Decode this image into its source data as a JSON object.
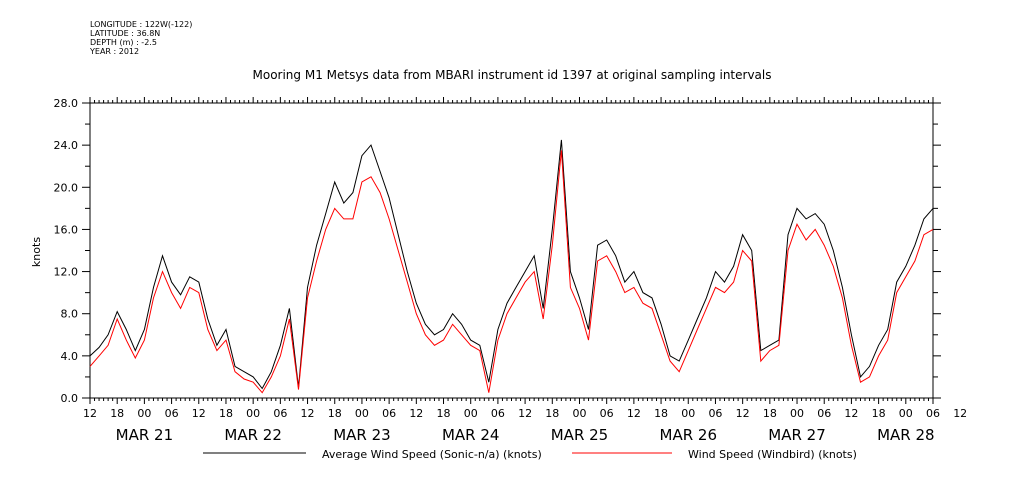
{
  "header": {
    "longitude": "LONGITUDE : 122W(-122)",
    "latitude": "LATITUDE : 36.8N",
    "depth": "DEPTH (m) : -2.5",
    "year": "YEAR : 2012"
  },
  "chart_data": {
    "type": "line",
    "title": "Mooring M1 Metsys data from MBARI instrument id 1397 at original sampling intervals",
    "ylabel": "knots",
    "ylim": [
      0,
      28
    ],
    "y_ticks": [
      "0.0",
      "4.0",
      "8.0",
      "12.0",
      "16.0",
      "20.0",
      "24.0",
      "28.0"
    ],
    "x_range_hours": [
      0,
      186
    ],
    "x_hour_ticks": [
      "12",
      "18",
      "00",
      "06",
      "12",
      "18",
      "00",
      "06",
      "12",
      "18",
      "00",
      "06",
      "12",
      "18",
      "00",
      "06",
      "12",
      "18",
      "00",
      "06",
      "12",
      "18",
      "00",
      "06",
      "12",
      "18",
      "00",
      "06",
      "12",
      "18",
      "00",
      "06",
      "12"
    ],
    "x_day_labels": [
      "MAR 21",
      "MAR 22",
      "MAR 23",
      "MAR 24",
      "MAR 25",
      "MAR 26",
      "MAR 27",
      "MAR 28"
    ],
    "x_start": "2012-03-21 12:00",
    "x_unit": "hours since start",
    "series": [
      {
        "name": "Average Wind Speed (Sonic-n/a) (knots)",
        "color": "#000000",
        "x": [
          0,
          2,
          4,
          6,
          8,
          10,
          12,
          14,
          16,
          18,
          20,
          22,
          24,
          26,
          28,
          30,
          32,
          34,
          36,
          38,
          40,
          42,
          44,
          46,
          48,
          50,
          52,
          54,
          56,
          58,
          60,
          62,
          64,
          66,
          68,
          70,
          72,
          74,
          76,
          78,
          80,
          82,
          84,
          86,
          88,
          90,
          92,
          94,
          96,
          98,
          100,
          102,
          104,
          106,
          108,
          110,
          112,
          114,
          116,
          118,
          120,
          122,
          124,
          126,
          128,
          130,
          132,
          134,
          136,
          138,
          140,
          142,
          144,
          146,
          148,
          150,
          152,
          154,
          156,
          158,
          160,
          162,
          164,
          166,
          168,
          170,
          172,
          174,
          176,
          178,
          180,
          182,
          184,
          186
        ],
        "values": [
          4.0,
          4.8,
          6.0,
          8.2,
          6.5,
          4.5,
          6.5,
          10.5,
          13.5,
          11.0,
          9.8,
          11.5,
          11.0,
          7.5,
          5.0,
          6.5,
          3.0,
          2.5,
          2.0,
          0.9,
          2.5,
          5.0,
          8.5,
          1.0,
          10.5,
          14.5,
          17.5,
          20.5,
          18.5,
          19.5,
          23.0,
          24.0,
          21.5,
          19.0,
          15.5,
          12.0,
          9.0,
          7.0,
          6.0,
          6.5,
          8.0,
          7.0,
          5.5,
          5.0,
          1.5,
          6.5,
          9.0,
          10.5,
          12.0,
          13.5,
          8.5,
          16.0,
          24.5,
          12.0,
          9.5,
          6.5,
          14.5,
          15.0,
          13.5,
          11.0,
          12.0,
          10.0,
          9.5,
          7.0,
          4.0,
          3.5,
          5.5,
          7.5,
          9.5,
          12.0,
          11.0,
          12.5,
          15.5,
          14.0,
          4.5,
          5.0,
          5.5,
          15.5,
          18.0,
          17.0,
          17.5,
          16.5,
          14.0,
          10.5,
          6.0,
          2.0,
          3.0,
          5.0,
          6.5,
          11.0,
          12.5,
          14.5,
          17.0,
          18.0
        ]
      },
      {
        "name": "Wind Speed (Windbird) (knots)",
        "color": "#ff0000",
        "x": [
          0,
          2,
          4,
          6,
          8,
          10,
          12,
          14,
          16,
          18,
          20,
          22,
          24,
          26,
          28,
          30,
          32,
          34,
          36,
          38,
          40,
          42,
          44,
          46,
          48,
          50,
          52,
          54,
          56,
          58,
          60,
          62,
          64,
          66,
          68,
          70,
          72,
          74,
          76,
          78,
          80,
          82,
          84,
          86,
          88,
          90,
          92,
          94,
          96,
          98,
          100,
          102,
          104,
          106,
          108,
          110,
          112,
          114,
          116,
          118,
          120,
          122,
          124,
          126,
          128,
          130,
          132,
          134,
          136,
          138,
          140,
          142,
          144,
          146,
          148,
          150,
          152,
          154,
          156,
          158,
          160,
          162,
          164,
          166,
          168,
          170,
          172,
          174,
          176,
          178,
          180,
          182,
          184,
          186
        ],
        "values": [
          3.0,
          4.0,
          5.0,
          7.5,
          5.5,
          3.8,
          5.5,
          9.5,
          12.0,
          10.0,
          8.5,
          10.5,
          10.0,
          6.5,
          4.5,
          5.5,
          2.5,
          1.8,
          1.5,
          0.5,
          2.0,
          4.0,
          7.5,
          0.8,
          9.5,
          13.0,
          16.0,
          18.0,
          17.0,
          17.0,
          20.5,
          21.0,
          19.5,
          17.0,
          14.0,
          11.0,
          8.0,
          6.0,
          5.0,
          5.5,
          7.0,
          6.0,
          5.0,
          4.5,
          0.5,
          5.5,
          8.0,
          9.5,
          11.0,
          12.0,
          7.5,
          14.5,
          23.5,
          10.5,
          8.5,
          5.5,
          13.0,
          13.5,
          12.0,
          10.0,
          10.5,
          9.0,
          8.5,
          6.0,
          3.5,
          2.5,
          4.5,
          6.5,
          8.5,
          10.5,
          10.0,
          11.0,
          14.0,
          13.0,
          3.5,
          4.5,
          5.0,
          14.0,
          16.5,
          15.0,
          16.0,
          14.5,
          12.5,
          9.5,
          5.0,
          1.5,
          2.0,
          4.0,
          5.5,
          10.0,
          11.5,
          13.0,
          15.5,
          16.0
        ]
      }
    ]
  }
}
